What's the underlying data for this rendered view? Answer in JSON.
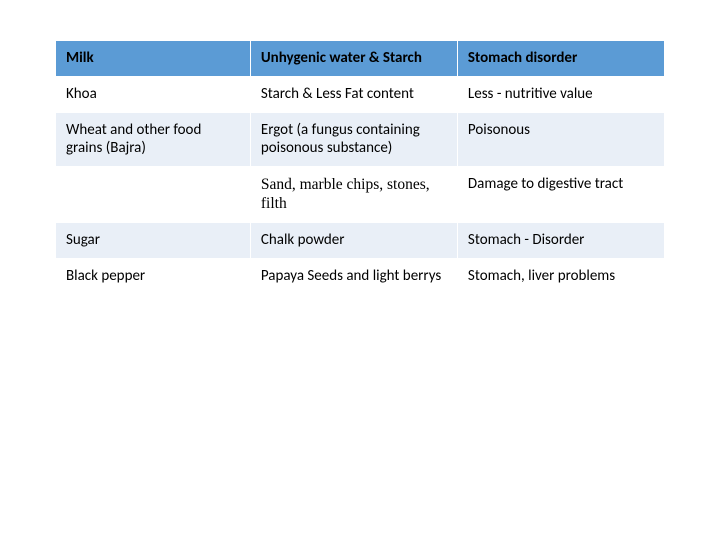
{
  "table": {
    "columns_count": 3,
    "header_bg": "#5b9bd5",
    "alt_bg": "#e9eff7",
    "border_color": "#ffffff",
    "text_color": "#000000",
    "fontsize": 15,
    "rows": [
      {
        "c1": "Milk",
        "c2": "Unhygenic water & Starch",
        "c3": "Stomach disorder",
        "header": true,
        "bold": true
      },
      {
        "c1": "Khoa",
        "c2": "Starch & Less Fat content",
        "c3": "Less - nutritive value"
      },
      {
        "c1": "Wheat and other food grains (Bajra)",
        "c2": "Ergot (a fungus containing poisonous substance)",
        "c3": "Poisonous",
        "alt": true
      },
      {
        "c1": "",
        "c2": "Sand, marble chips, stones, filth",
        "c3": "Damage to digestive tract",
        "c2_serif": true
      },
      {
        "c1": "Sugar",
        "c2": "Chalk powder",
        "c3": "Stomach - Disorder",
        "alt": true
      },
      {
        "c1": "Black pepper",
        "c2": "Papaya Seeds and light berrys",
        "c3": "Stomach, liver problems"
      }
    ]
  }
}
